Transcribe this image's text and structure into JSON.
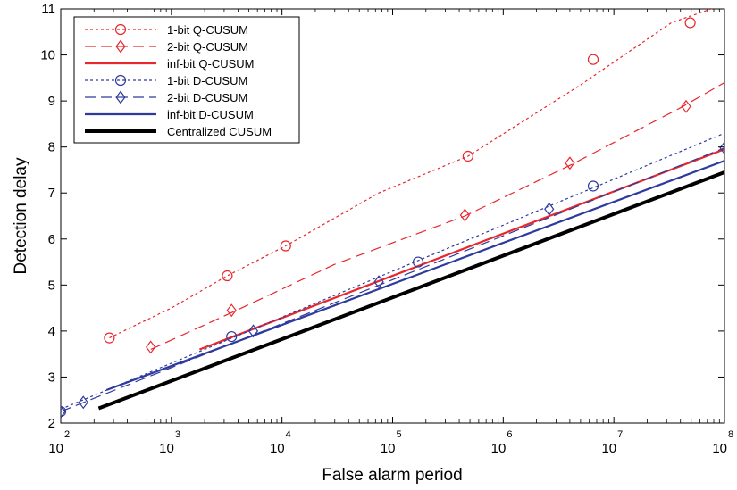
{
  "chart_data": {
    "type": "line",
    "title": "",
    "xlabel": "False alarm period",
    "ylabel": "Detection delay",
    "xscale": "log",
    "xlim": [
      100,
      100000000
    ],
    "ylim": [
      2,
      11
    ],
    "xticks": [
      100,
      1000,
      10000,
      100000,
      1000000,
      10000000,
      100000000
    ],
    "xtick_labels": [
      {
        "base": "10",
        "exp": "2"
      },
      {
        "base": "10",
        "exp": "3"
      },
      {
        "base": "10",
        "exp": "4"
      },
      {
        "base": "10",
        "exp": "5"
      },
      {
        "base": "10",
        "exp": "6"
      },
      {
        "base": "10",
        "exp": "7"
      },
      {
        "base": "10",
        "exp": "8"
      }
    ],
    "yticks": [
      2,
      3,
      4,
      5,
      6,
      7,
      8,
      9,
      10,
      11
    ],
    "ytick_labels": [
      "2",
      "3",
      "4",
      "5",
      "6",
      "7",
      "8",
      "9",
      "10",
      "11"
    ],
    "grid": false,
    "legend_position": "top-left",
    "series": [
      {
        "name": "1-bit Q-CUSUM",
        "color": "#e8262b",
        "dash": "dotted",
        "width": 1.2,
        "marker": "circle",
        "x": [
          275,
          1000,
          3200,
          10800,
          75000,
          480000,
          5000000,
          33000000,
          100000000
        ],
        "y": [
          3.85,
          4.5,
          5.2,
          5.85,
          7.0,
          7.8,
          9.35,
          10.7,
          11.1
        ],
        "marker_x": [
          275,
          3200,
          10800,
          480000,
          6500000,
          49000000
        ],
        "marker_y": [
          3.85,
          5.2,
          5.85,
          7.8,
          9.9,
          10.7
        ]
      },
      {
        "name": "2-bit Q-CUSUM",
        "color": "#e8262b",
        "dash": "longdash",
        "width": 1.2,
        "marker": "diamond",
        "x": [
          650,
          3500,
          30000,
          450000,
          4000000,
          40000000,
          100000000
        ],
        "y": [
          3.6,
          4.4,
          5.45,
          6.5,
          7.6,
          8.85,
          9.4
        ],
        "marker_x": [
          650,
          3500,
          450000,
          4000000,
          45000000
        ],
        "marker_y": [
          3.65,
          4.45,
          6.52,
          7.65,
          8.88
        ]
      },
      {
        "name": "inf-bit Q-CUSUM",
        "color": "#e8262b",
        "dash": "solid",
        "width": 2.2,
        "marker": "none",
        "x": [
          1800,
          100000000
        ],
        "y": [
          3.6,
          7.95
        ]
      },
      {
        "name": "1-bit D-CUSUM",
        "color": "#2d3a9e",
        "dash": "dotted",
        "width": 1.2,
        "marker": "circle",
        "x": [
          100,
          100000000
        ],
        "y": [
          2.3,
          8.3
        ],
        "marker_x": [
          100,
          3500,
          170000,
          6500000
        ],
        "marker_y": [
          2.25,
          3.88,
          5.5,
          7.15
        ]
      },
      {
        "name": "2-bit D-CUSUM",
        "color": "#2d3a9e",
        "dash": "longdash",
        "width": 1.2,
        "marker": "diamond",
        "x": [
          100,
          100000000
        ],
        "y": [
          2.25,
          7.98
        ],
        "marker_x": [
          100,
          160,
          5500,
          75000,
          2600000,
          100000000
        ],
        "marker_y": [
          2.25,
          2.45,
          4.0,
          5.07,
          6.65,
          7.98
        ]
      },
      {
        "name": "inf-bit D-CUSUM",
        "color": "#2d3a9e",
        "dash": "solid",
        "width": 2.2,
        "marker": "none",
        "x": [
          260,
          100000000
        ],
        "y": [
          2.72,
          7.7
        ]
      },
      {
        "name": "Centralized CUSUM",
        "color": "#000000",
        "dash": "solid",
        "width": 4,
        "marker": "none",
        "x": [
          220,
          100000000
        ],
        "y": [
          2.32,
          7.45
        ]
      }
    ]
  }
}
